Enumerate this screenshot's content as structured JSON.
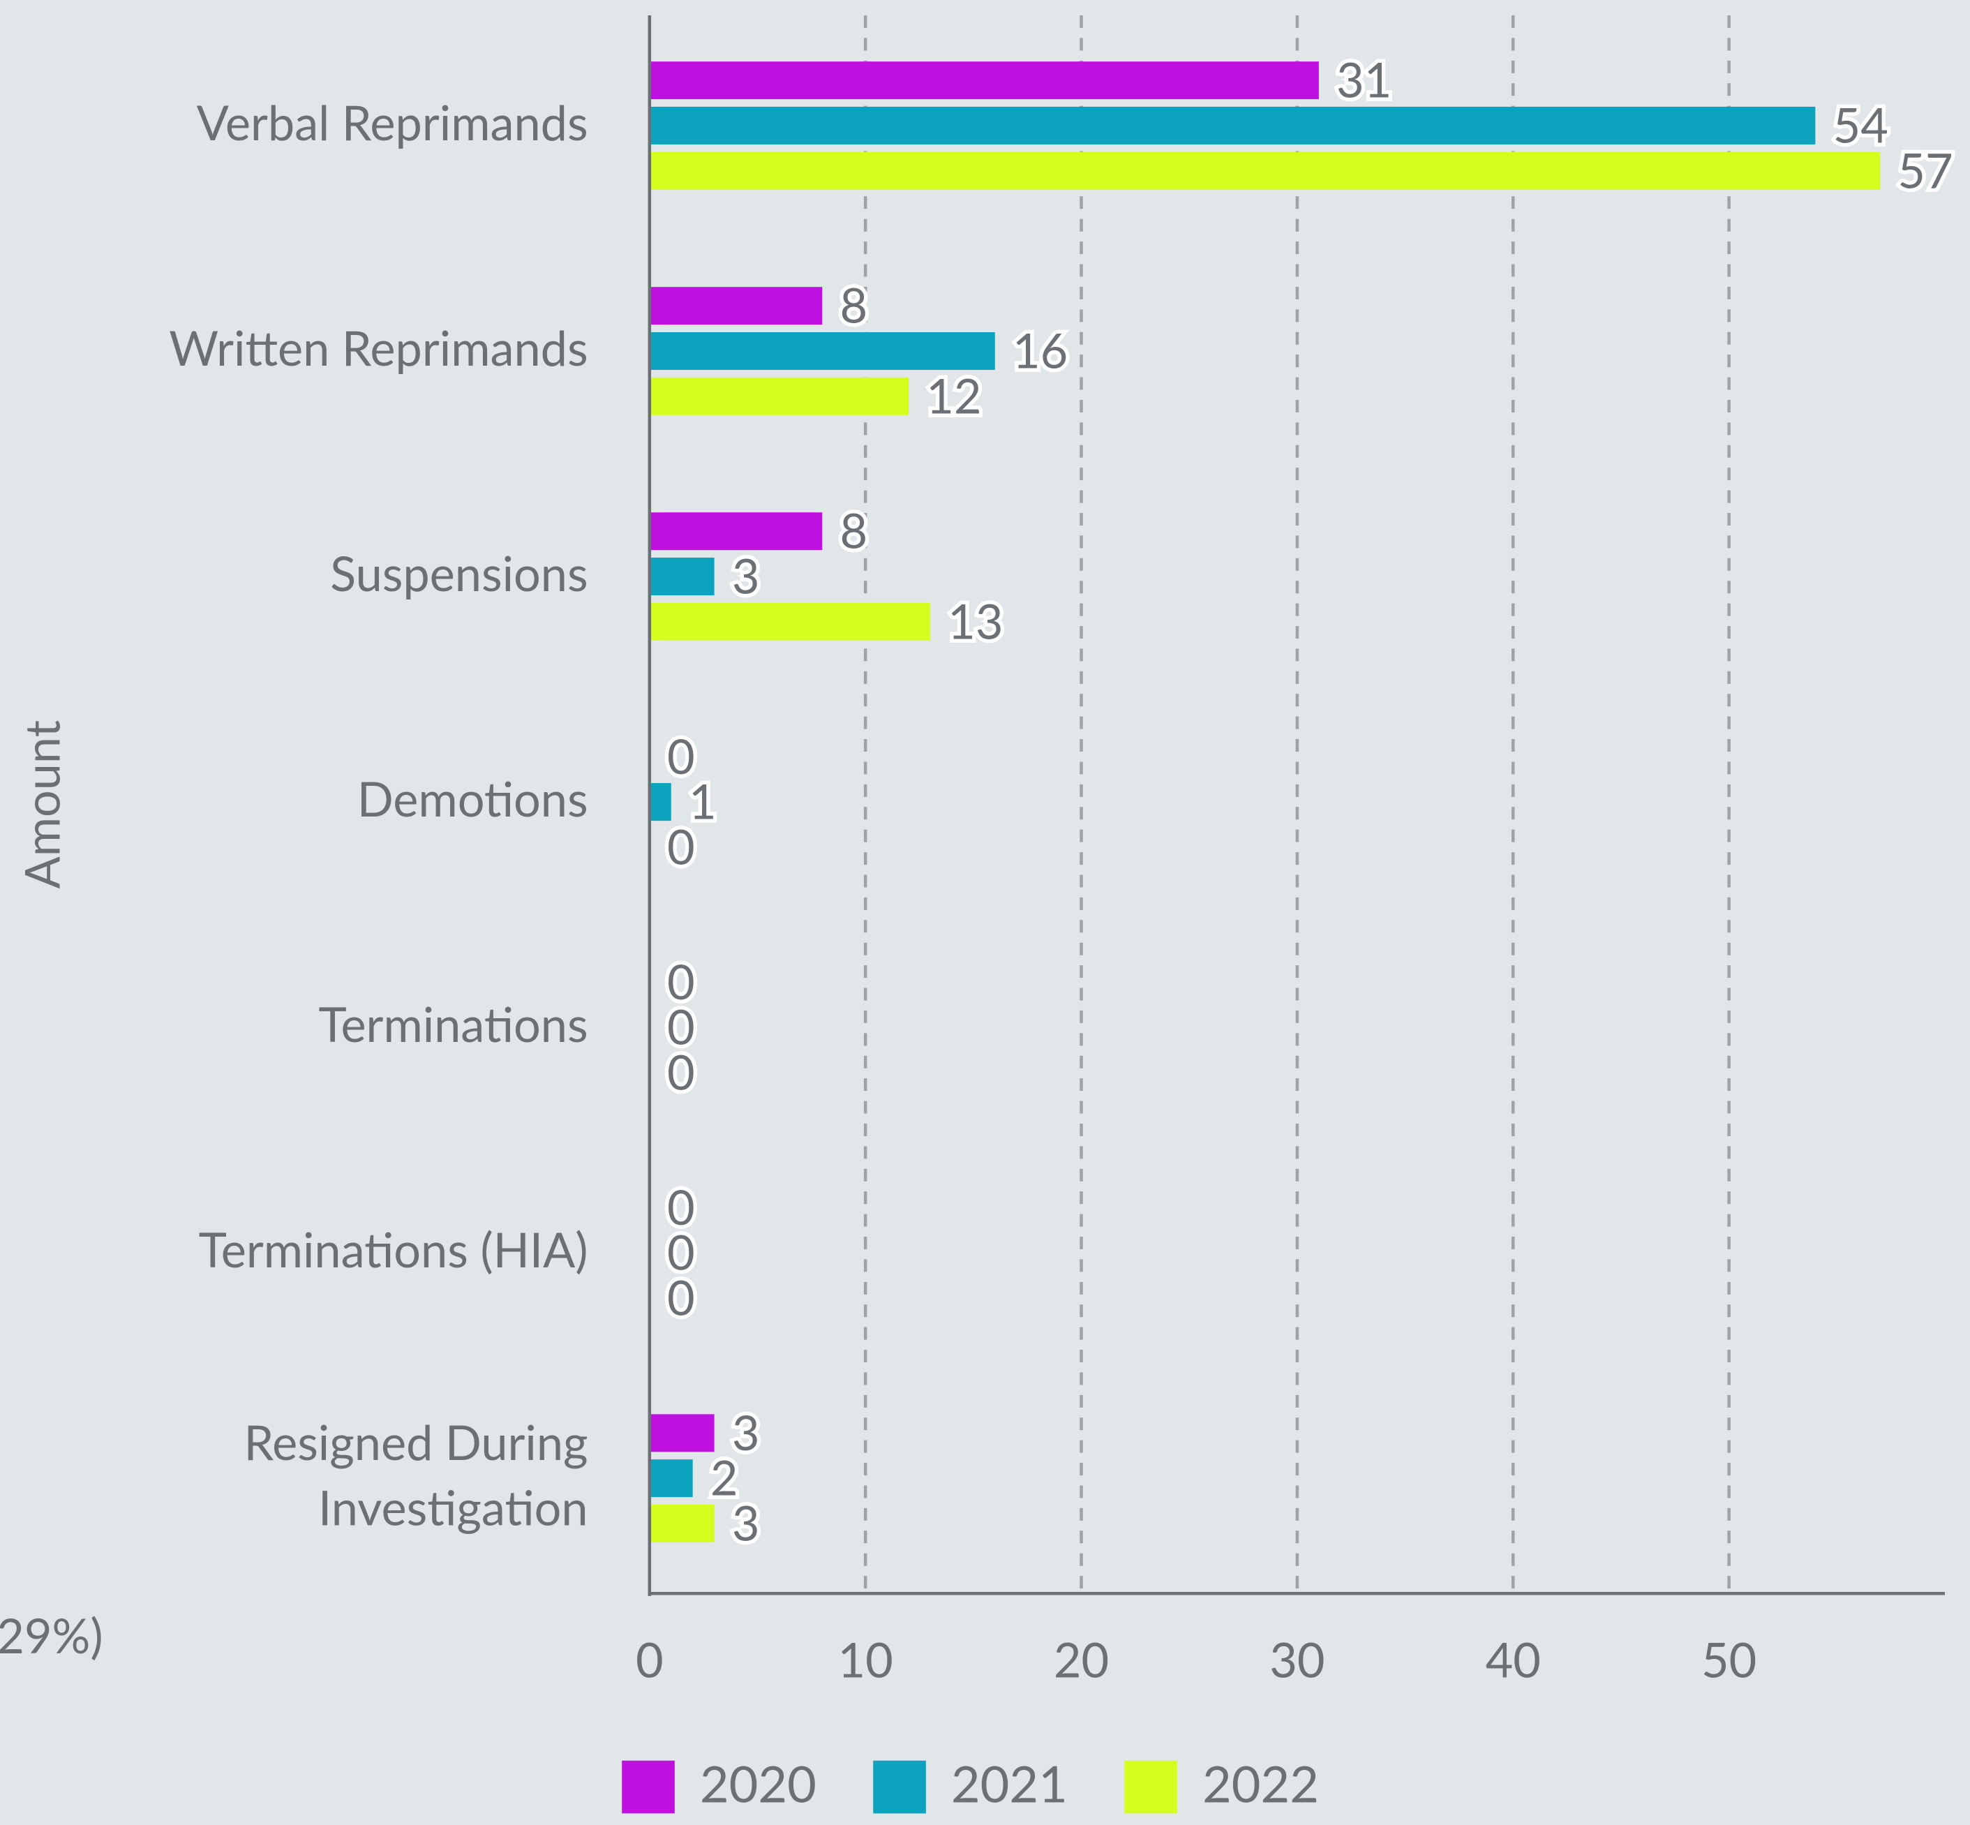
{
  "chart_data": {
    "type": "bar",
    "orientation": "horizontal",
    "y_axis_label": "Amount",
    "annotation": "29%)",
    "categories": [
      "Verbal Reprimands",
      "Written Reprimands",
      "Suspensions",
      "Demotions",
      "Terminations",
      "Terminations (HIA)",
      "Resigned During Investigation"
    ],
    "series": [
      {
        "name": "2020",
        "color": "#c010e0",
        "values": [
          31,
          8,
          8,
          0,
          0,
          0,
          3
        ]
      },
      {
        "name": "2021",
        "color": "#0ba3bd",
        "values": [
          54,
          16,
          3,
          1,
          0,
          0,
          2
        ]
      },
      {
        "name": "2022",
        "color": "#d4ff1e",
        "values": [
          57,
          12,
          13,
          0,
          0,
          0,
          3
        ]
      }
    ],
    "xlim": [
      0,
      60
    ],
    "xticks": [
      0,
      10,
      20,
      30,
      40,
      50
    ],
    "grid": true,
    "legend": "bottom"
  }
}
